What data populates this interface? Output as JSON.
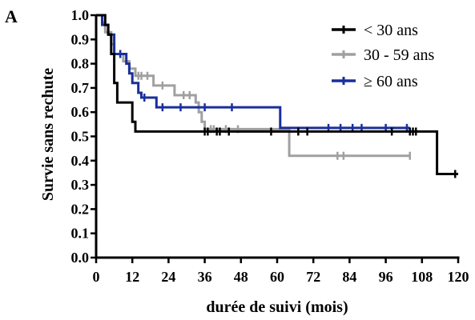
{
  "chart_data": {
    "type": "line",
    "panel_label": "A",
    "xlabel": "durée de suivi (mois)",
    "ylabel": "Survie sans rechute",
    "xlim": [
      0,
      120
    ],
    "ylim": [
      0,
      1.0
    ],
    "x_ticks": [
      "0",
      "12",
      "24",
      "36",
      "48",
      "60",
      "72",
      "84",
      "96",
      "108",
      "120"
    ],
    "y_ticks": [
      "0.0",
      "0.1",
      "0.2",
      "0.3",
      "0.4",
      "0.5",
      "0.6",
      "0.7",
      "0.8",
      "0.9",
      "1.0"
    ],
    "grid": false,
    "legend_position": "top-right",
    "series": [
      {
        "name": "< 30 ans",
        "color": "#000000",
        "step_points": [
          [
            0,
            1.0
          ],
          [
            3,
            1.0
          ],
          [
            3,
            0.96
          ],
          [
            4,
            0.96
          ],
          [
            4,
            0.92
          ],
          [
            5,
            0.92
          ],
          [
            5,
            0.84
          ],
          [
            6,
            0.84
          ],
          [
            6,
            0.72
          ],
          [
            7,
            0.72
          ],
          [
            7,
            0.64
          ],
          [
            12,
            0.64
          ],
          [
            12,
            0.56
          ],
          [
            13,
            0.56
          ],
          [
            13,
            0.52
          ],
          [
            113,
            0.52
          ],
          [
            113,
            0.345
          ],
          [
            120,
            0.345
          ]
        ],
        "censor": [
          [
            36,
            0.52
          ],
          [
            37,
            0.52
          ],
          [
            40,
            0.52
          ],
          [
            41,
            0.52
          ],
          [
            44,
            0.52
          ],
          [
            58,
            0.52
          ],
          [
            67,
            0.52
          ],
          [
            70,
            0.52
          ],
          [
            98,
            0.52
          ],
          [
            104,
            0.52
          ],
          [
            105,
            0.52
          ],
          [
            106,
            0.52
          ],
          [
            119,
            0.345
          ]
        ]
      },
      {
        "name": "30 - 59 ans",
        "color": "#a0a0a0",
        "step_points": [
          [
            0,
            1.0
          ],
          [
            2,
            1.0
          ],
          [
            2,
            0.97
          ],
          [
            3,
            0.97
          ],
          [
            3,
            0.93
          ],
          [
            5,
            0.93
          ],
          [
            5,
            0.88
          ],
          [
            6,
            0.88
          ],
          [
            6,
            0.84
          ],
          [
            9,
            0.84
          ],
          [
            9,
            0.81
          ],
          [
            11,
            0.81
          ],
          [
            11,
            0.78
          ],
          [
            13,
            0.78
          ],
          [
            13,
            0.75
          ],
          [
            19,
            0.75
          ],
          [
            19,
            0.71
          ],
          [
            26,
            0.71
          ],
          [
            26,
            0.67
          ],
          [
            33,
            0.67
          ],
          [
            33,
            0.64
          ],
          [
            34,
            0.64
          ],
          [
            34,
            0.6
          ],
          [
            35,
            0.6
          ],
          [
            35,
            0.56
          ],
          [
            36,
            0.56
          ],
          [
            36,
            0.53
          ],
          [
            64,
            0.53
          ],
          [
            64,
            0.42
          ],
          [
            104,
            0.42
          ]
        ],
        "censor": [
          [
            8,
            0.84
          ],
          [
            14,
            0.75
          ],
          [
            15,
            0.75
          ],
          [
            17,
            0.75
          ],
          [
            22,
            0.71
          ],
          [
            29,
            0.67
          ],
          [
            31,
            0.67
          ],
          [
            38,
            0.53
          ],
          [
            39,
            0.53
          ],
          [
            43,
            0.53
          ],
          [
            47,
            0.53
          ],
          [
            80,
            0.42
          ],
          [
            82,
            0.42
          ],
          [
            104,
            0.42
          ]
        ]
      },
      {
        "name": "≥ 60 ans",
        "color": "#1a2f9a",
        "step_points": [
          [
            0,
            1.0
          ],
          [
            2,
            1.0
          ],
          [
            2,
            0.96
          ],
          [
            4,
            0.96
          ],
          [
            4,
            0.92
          ],
          [
            6,
            0.92
          ],
          [
            6,
            0.84
          ],
          [
            10,
            0.84
          ],
          [
            10,
            0.8
          ],
          [
            11,
            0.8
          ],
          [
            11,
            0.76
          ],
          [
            12,
            0.76
          ],
          [
            12,
            0.72
          ],
          [
            14,
            0.72
          ],
          [
            14,
            0.68
          ],
          [
            15,
            0.68
          ],
          [
            15,
            0.66
          ],
          [
            20,
            0.66
          ],
          [
            20,
            0.62
          ],
          [
            61,
            0.62
          ],
          [
            61,
            0.535
          ],
          [
            104,
            0.535
          ]
        ],
        "censor": [
          [
            8,
            0.84
          ],
          [
            16,
            0.66
          ],
          [
            22,
            0.62
          ],
          [
            28,
            0.62
          ],
          [
            36,
            0.62
          ],
          [
            45,
            0.62
          ],
          [
            77,
            0.535
          ],
          [
            81,
            0.535
          ],
          [
            85,
            0.535
          ],
          [
            88,
            0.535
          ],
          [
            96,
            0.535
          ],
          [
            103,
            0.535
          ]
        ]
      }
    ]
  }
}
